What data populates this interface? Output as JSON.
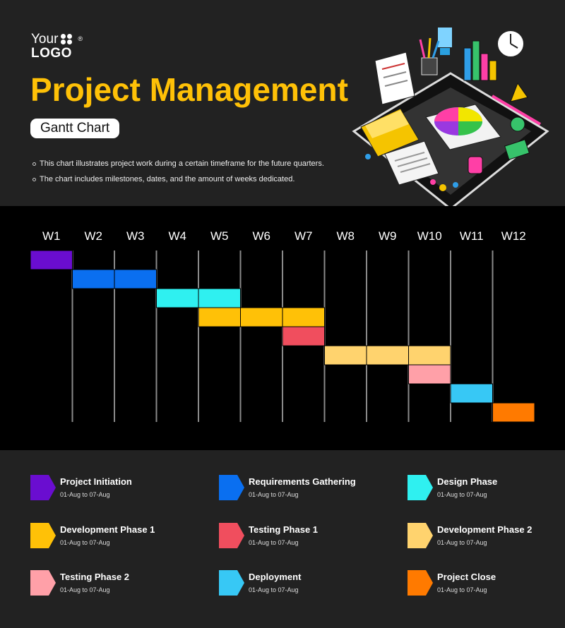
{
  "logo": {
    "line1": "Your",
    "line2": "LOGO",
    "mark": "®"
  },
  "title": "Project Management",
  "subtitle": "Gantt Chart",
  "bullets": [
    "This chart illustrates project work  during a certain timeframe for the future quarters.",
    "The chart includes milestones, dates, and the amount of weeks dedicated."
  ],
  "illustration": "isometric-desk-illustration",
  "chart_data": {
    "type": "gantt",
    "weeks": [
      "W1",
      "W2",
      "W3",
      "W4",
      "W5",
      "W6",
      "W7",
      "W8",
      "W9",
      "W10",
      "W11",
      "W12"
    ],
    "tasks": [
      {
        "name": "Project Initiation",
        "start": 1,
        "end": 1,
        "color": "#6A0DD0",
        "dates": "01-Aug to 07-Aug"
      },
      {
        "name": "Requirements Gathering",
        "start": 2,
        "end": 3,
        "color": "#0A6FF0",
        "dates": "01-Aug to 07-Aug"
      },
      {
        "name": "Design Phase",
        "start": 4,
        "end": 5,
        "color": "#2FF0F0",
        "dates": "01-Aug to 07-Aug"
      },
      {
        "name": "Development Phase 1",
        "start": 5,
        "end": 7,
        "color": "#FFC107",
        "dates": "01-Aug to 07-Aug"
      },
      {
        "name": "Testing Phase 1",
        "start": 7,
        "end": 7,
        "color": "#F04E5E",
        "dates": "01-Aug to 07-Aug"
      },
      {
        "name": "Development Phase 2",
        "start": 8,
        "end": 10,
        "color": "#FFD36E",
        "dates": "01-Aug to 07-Aug"
      },
      {
        "name": "Testing Phase 2",
        "start": 10,
        "end": 10,
        "color": "#FFA0A8",
        "dates": "01-Aug to 07-Aug"
      },
      {
        "name": "Deployment",
        "start": 11,
        "end": 11,
        "color": "#37C8F5",
        "dates": "01-Aug to 07-Aug"
      },
      {
        "name": "Project Close",
        "start": 12,
        "end": 12,
        "color": "#FF7A00",
        "dates": "01-Aug to 07-Aug"
      }
    ]
  }
}
